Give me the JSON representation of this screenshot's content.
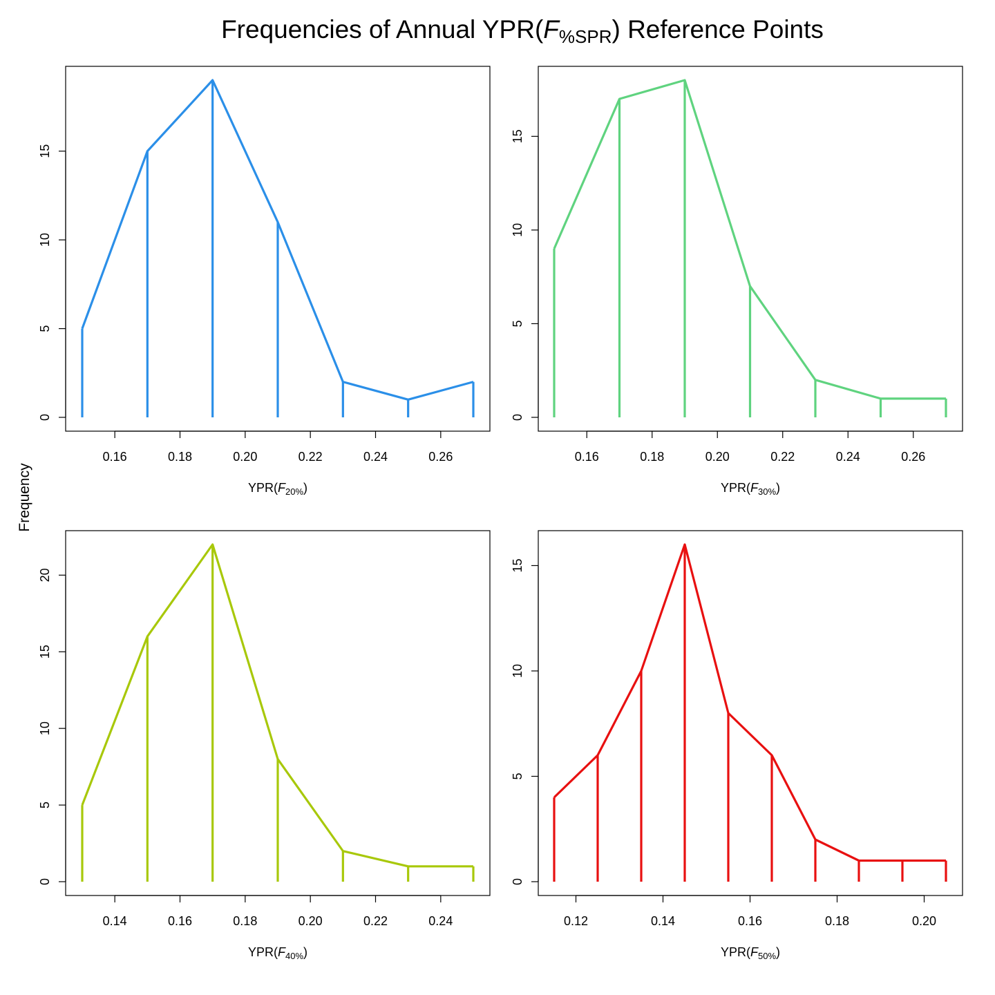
{
  "title": {
    "prefix": "Frequencies of Annual YPR(",
    "italic": "F",
    "subscript": "%SPR",
    "suffix": ") Reference Points"
  },
  "ylabel": "Frequency",
  "chart_data": [
    {
      "type": "line",
      "x": [
        0.15,
        0.17,
        0.19,
        0.21,
        0.23,
        0.25,
        0.27
      ],
      "y": [
        5,
        15,
        19,
        11,
        2,
        1,
        2
      ],
      "xticks": [
        0.16,
        0.18,
        0.2,
        0.22,
        0.24,
        0.26
      ],
      "yticks": [
        0,
        5,
        10,
        15
      ],
      "xlabel": {
        "prefix": "YPR(",
        "italic": "F",
        "subscript": "20%",
        "suffix": ")"
      },
      "color": "#2b8fe8",
      "vertical_lines": true
    },
    {
      "type": "line",
      "x": [
        0.15,
        0.17,
        0.19,
        0.21,
        0.23,
        0.25,
        0.27
      ],
      "y": [
        9,
        17,
        18,
        7,
        2,
        1,
        1
      ],
      "xticks": [
        0.16,
        0.18,
        0.2,
        0.22,
        0.24,
        0.26
      ],
      "yticks": [
        0,
        5,
        10,
        15
      ],
      "xlabel": {
        "prefix": "YPR(",
        "italic": "F",
        "subscript": "30%",
        "suffix": ")"
      },
      "color": "#5fd37f",
      "vertical_lines": true
    },
    {
      "type": "line",
      "x": [
        0.13,
        0.15,
        0.17,
        0.19,
        0.21,
        0.23,
        0.25
      ],
      "y": [
        5,
        16,
        22,
        8,
        2,
        1,
        1
      ],
      "xticks": [
        0.14,
        0.16,
        0.18,
        0.2,
        0.22,
        0.24
      ],
      "yticks": [
        0,
        5,
        10,
        15,
        20
      ],
      "xlabel": {
        "prefix": "YPR(",
        "italic": "F",
        "subscript": "40%",
        "suffix": ")"
      },
      "color": "#a8c80a",
      "vertical_lines": true
    },
    {
      "type": "line",
      "x": [
        0.115,
        0.125,
        0.135,
        0.145,
        0.155,
        0.165,
        0.175,
        0.185,
        0.195,
        0.205
      ],
      "y": [
        4,
        6,
        10,
        16,
        8,
        6,
        2,
        1,
        1,
        1
      ],
      "xticks": [
        0.12,
        0.14,
        0.16,
        0.18,
        0.2
      ],
      "yticks": [
        0,
        5,
        10,
        15
      ],
      "xlabel": {
        "prefix": "YPR(",
        "italic": "F",
        "subscript": "50%",
        "suffix": ")"
      },
      "color": "#e81010",
      "vertical_lines": true
    }
  ]
}
